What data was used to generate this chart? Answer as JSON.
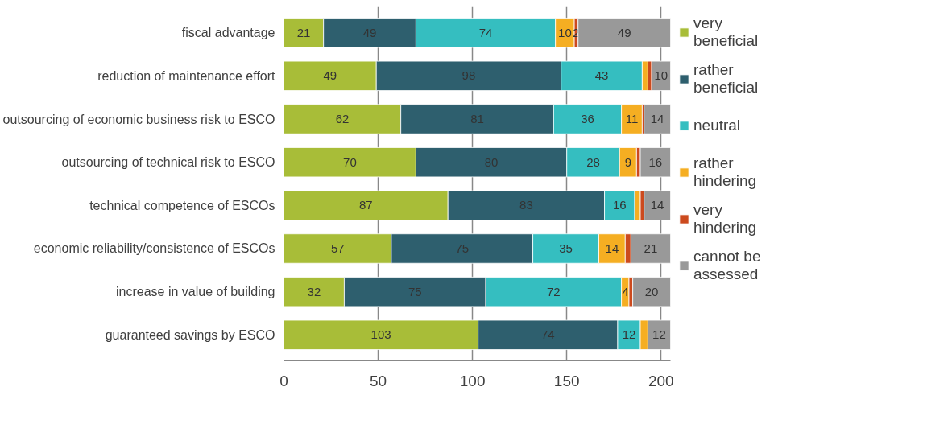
{
  "chart_data": {
    "type": "bar",
    "orientation": "horizontal",
    "stacked": true,
    "categories": [
      "fiscal advantage",
      "reduction of maintenance effort",
      "outsourcing of economic business risk to ESCO",
      "outsourcing of technical risk to ESCO",
      "technical competence of ESCOs",
      "economic reliability/consistence of ESCOs",
      "increase in value of building",
      "guaranteed savings by ESCO"
    ],
    "series": [
      {
        "name": "very beneficial",
        "color": "#a8bd38",
        "values": [
          21,
          49,
          62,
          70,
          87,
          57,
          32,
          103
        ],
        "value_labels": [
          "21",
          "49",
          "62",
          "70",
          "87",
          "57",
          "32",
          "103"
        ]
      },
      {
        "name": "rather beneficial",
        "color": "#2e5f6e",
        "values": [
          49,
          98,
          81,
          80,
          83,
          75,
          75,
          74
        ],
        "value_labels": [
          "49",
          "98",
          "81",
          "80",
          "83",
          "75",
          "75",
          "74"
        ]
      },
      {
        "name": "neutral",
        "color": "#35bec0",
        "values": [
          74,
          43,
          36,
          28,
          16,
          35,
          72,
          12
        ],
        "value_labels": [
          "74",
          "43",
          "36",
          "28",
          "16",
          "35",
          "72",
          "12"
        ]
      },
      {
        "name": "rather hindering",
        "color": "#f5ae22",
        "values": [
          10,
          3,
          11,
          9,
          3,
          14,
          4,
          4
        ],
        "value_labels": [
          "10",
          null,
          "11",
          "9",
          null,
          "14",
          "4",
          null
        ]
      },
      {
        "name": "very hindering",
        "color": "#cc4a1e",
        "values": [
          2,
          2,
          1,
          2,
          2,
          3,
          2,
          null
        ],
        "value_labels": [
          "2",
          null,
          null,
          null,
          null,
          null,
          null,
          null
        ]
      },
      {
        "name": "cannot be assessed",
        "color": "#999999",
        "values": [
          49,
          10,
          14,
          16,
          14,
          21,
          20,
          12
        ],
        "value_labels": [
          "49",
          "10",
          "14",
          "16",
          "14",
          "21",
          "20",
          "12"
        ]
      }
    ],
    "xlim": [
      0,
      205
    ],
    "xticks": [
      0,
      50,
      100,
      150,
      200
    ],
    "grid": "x",
    "legend": "right"
  }
}
